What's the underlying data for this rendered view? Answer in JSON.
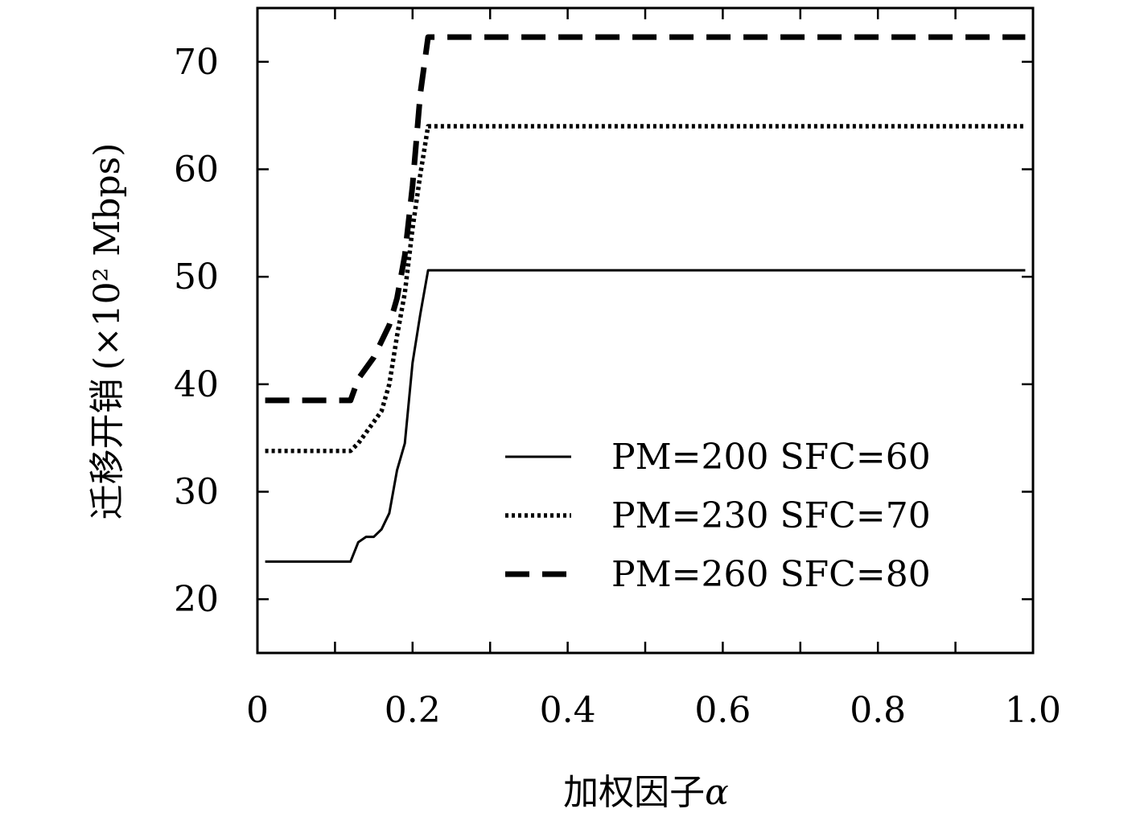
{
  "chart_data": {
    "type": "line",
    "xlabel": "加权因子",
    "xlabel_symbol": "α",
    "ylabel": "迁移开销",
    "ylabel_unit": "(×10² Mbps)",
    "xlim": [
      0,
      1.0
    ],
    "ylim": [
      15,
      75
    ],
    "x_ticks": [
      0,
      0.2,
      0.4,
      0.6,
      0.8,
      1.0
    ],
    "x_tick_labels": [
      "0",
      "0.2",
      "0.4",
      "0.6",
      "0.8",
      "1.0"
    ],
    "y_ticks": [
      20,
      30,
      40,
      50,
      60,
      70
    ],
    "y_tick_labels": [
      "20",
      "30",
      "40",
      "50",
      "60",
      "70"
    ],
    "grid": false,
    "legend_position": "bottom-right",
    "series": [
      {
        "name": "PM=200 SFC=60",
        "style": "solid",
        "color": "#000000",
        "x": [
          0.01,
          0.12,
          0.13,
          0.14,
          0.15,
          0.16,
          0.17,
          0.18,
          0.19,
          0.2,
          0.21,
          0.22,
          0.99
        ],
        "y": [
          23.5,
          23.5,
          25.3,
          25.8,
          25.8,
          26.5,
          28.0,
          32.0,
          34.5,
          42.0,
          46.5,
          50.6,
          50.6
        ]
      },
      {
        "name": "PM=230 SFC=70",
        "style": "dotted",
        "color": "#000000",
        "x": [
          0.01,
          0.12,
          0.13,
          0.14,
          0.15,
          0.16,
          0.17,
          0.18,
          0.19,
          0.2,
          0.21,
          0.22,
          0.99
        ],
        "y": [
          33.8,
          33.8,
          34.5,
          35.5,
          36.5,
          37.5,
          40.0,
          44.5,
          48.5,
          54.5,
          59.5,
          64.0,
          64.0
        ]
      },
      {
        "name": "PM=260 SFC=80",
        "style": "dashed",
        "color": "#000000",
        "x": [
          0.01,
          0.12,
          0.13,
          0.15,
          0.17,
          0.18,
          0.19,
          0.2,
          0.21,
          0.22,
          0.99
        ],
        "y": [
          38.5,
          38.5,
          40.5,
          42.5,
          45.5,
          48.0,
          52.0,
          58.5,
          67.0,
          72.3,
          72.3
        ]
      }
    ]
  }
}
